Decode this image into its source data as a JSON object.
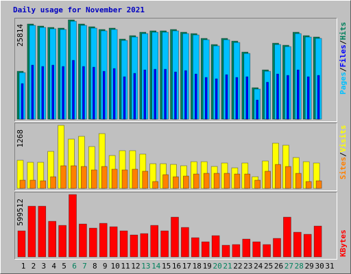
{
  "chart_data": [
    {
      "type": "bar",
      "title": "Daily usage for November 2021",
      "legend_separator": "/",
      "ylim": [
        0,
        25814
      ],
      "yticks": [
        25814
      ],
      "series": [
        {
          "name": "Pages",
          "color": "#00c0ff",
          "values": [
            12106,
            24390,
            23856,
            23500,
            23322,
            25458,
            24390,
            23678,
            22966,
            23322,
            20474,
            21364,
            22254,
            22610,
            22610,
            22966,
            22254,
            21898,
            20652,
            19049,
            20652,
            19939,
            17091,
            7833,
            12462,
            19405,
            18871,
            22254,
            21364,
            21008,
            null
          ]
        },
        {
          "name": "Files",
          "color": "#0000ff",
          "values": [
            9258,
            14064,
            13708,
            14064,
            13708,
            15311,
            13708,
            13530,
            12462,
            13174,
            11038,
            11928,
            12818,
            12996,
            12996,
            12284,
            12640,
            11750,
            10860,
            10504,
            11572,
            10860,
            11038,
            4985,
            9614,
            11750,
            11394,
            12818,
            11038,
            11394,
            null
          ]
        },
        {
          "name": "Hits",
          "color": "#00805c",
          "values": [
            12462,
            24746,
            24212,
            23856,
            23678,
            25814,
            24746,
            24034,
            23322,
            23678,
            20830,
            21720,
            22610,
            22966,
            22966,
            23322,
            22610,
            22254,
            21008,
            19405,
            21008,
            20295,
            17447,
            8189,
            12818,
            19761,
            19227,
            22610,
            21720,
            21364,
            null
          ]
        }
      ]
    },
    {
      "type": "bar",
      "legend_separator": "/",
      "ylim": [
        0,
        1268
      ],
      "yticks": [
        1268
      ],
      "series": [
        {
          "name": "Sites",
          "color": "#ff8000",
          "values": [
            165,
            165,
            152,
            234,
            455,
            455,
            441,
            372,
            441,
            386,
            372,
            386,
            345,
            138,
            276,
            234,
            248,
            289,
            303,
            303,
            303,
            289,
            289,
            165,
            345,
            482,
            441,
            303,
            138,
            152,
            null
          ]
        },
        {
          "name": "Visits",
          "color": "#ffff00",
          "values": [
            565,
            524,
            524,
            744,
            1268,
            992,
            1047,
            841,
            1102,
            661,
            758,
            758,
            689,
            496,
            496,
            482,
            455,
            537,
            537,
            441,
            510,
            413,
            510,
            234,
            551,
            909,
            868,
            620,
            537,
            510,
            null
          ]
        }
      ]
    },
    {
      "type": "bar",
      "ylim": [
        0,
        599512
      ],
      "yticks": [
        599512
      ],
      "categories": [
        "1",
        "2",
        "3",
        "4",
        "5",
        "6",
        "7",
        "8",
        "9",
        "10",
        "11",
        "12",
        "13",
        "14",
        "15",
        "16",
        "17",
        "18",
        "19",
        "20",
        "21",
        "22",
        "23",
        "24",
        "25",
        "26",
        "27",
        "28",
        "29",
        "30",
        "31"
      ],
      "category_colors": [
        "#000000",
        "#000000",
        "#000000",
        "#000000",
        "#000000",
        "#00805c",
        "#00805c",
        "#000000",
        "#000000",
        "#000000",
        "#000000",
        "#000000",
        "#00805c",
        "#00805c",
        "#000000",
        "#000000",
        "#000000",
        "#000000",
        "#000000",
        "#00805c",
        "#00805c",
        "#000000",
        "#000000",
        "#000000",
        "#000000",
        "#000000",
        "#00805c",
        "#00805c",
        "#000000",
        "#000000",
        "#000000"
      ],
      "series": [
        {
          "name": "KBytes",
          "color": "#ff0000",
          "values": [
            250344,
            487512,
            487512,
            342576,
            303048,
            599512,
            316224,
            276696,
            322812,
            289872,
            250344,
            210816,
            223992,
            303048,
            250344,
            382104,
            283284,
            184464,
            144936,
            204228,
            111996,
            118584,
            171288,
            144936,
            118584,
            177876,
            382104,
            237168,
            217404,
            296460,
            null
          ]
        }
      ]
    }
  ]
}
